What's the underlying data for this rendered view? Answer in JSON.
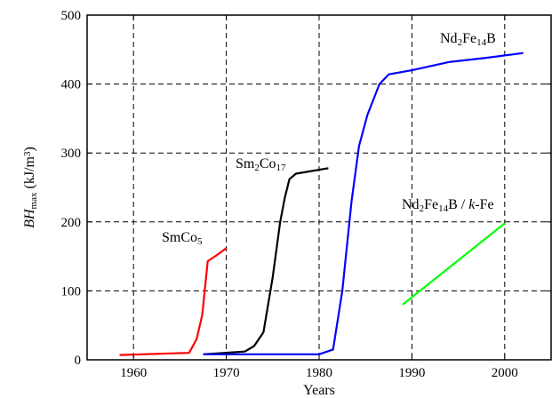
{
  "chart_data": {
    "type": "line",
    "title": "",
    "xlabel": "Years",
    "ylabel": {
      "base": "BH",
      "sub": "max",
      "unit": " (kJ/m",
      "sup": "3",
      "close": ")"
    },
    "xlim": [
      1955,
      2005
    ],
    "ylim": [
      0,
      500
    ],
    "x_ticks": [
      1960,
      1970,
      1980,
      1990,
      2000
    ],
    "y_ticks": [
      0,
      100,
      200,
      300,
      400,
      500
    ],
    "x_tick_labels": [
      "1960",
      "1970",
      "1980",
      "1990",
      "2000"
    ],
    "y_tick_labels": [
      "0",
      "100",
      "200",
      "300",
      "400",
      "500"
    ],
    "grid": true,
    "grid_style": "dashed",
    "series": [
      {
        "id": "smco5",
        "label_parts": [
          {
            "t": "SmCo"
          },
          {
            "t": "5",
            "sub": true
          }
        ],
        "color": "#ff0000",
        "points": [
          [
            1958.5,
            7
          ],
          [
            1966,
            10
          ],
          [
            1966.8,
            30
          ],
          [
            1967.4,
            65
          ],
          [
            1968,
            143
          ],
          [
            1969,
            152
          ],
          [
            1970,
            162
          ]
        ]
      },
      {
        "id": "sm2co17",
        "label_parts": [
          {
            "t": "Sm"
          },
          {
            "t": "2",
            "sub": true
          },
          {
            "t": "Co"
          },
          {
            "t": "17",
            "sub": true
          }
        ],
        "color": "#000000",
        "points": [
          [
            1967.5,
            8
          ],
          [
            1972,
            12
          ],
          [
            1973,
            20
          ],
          [
            1974,
            40
          ],
          [
            1975,
            120
          ],
          [
            1975.8,
            200
          ],
          [
            1976.3,
            235
          ],
          [
            1976.8,
            262
          ],
          [
            1977.5,
            270
          ],
          [
            1981,
            278
          ]
        ]
      },
      {
        "id": "nd2fe14b",
        "label_parts": [
          {
            "t": "Nd"
          },
          {
            "t": "2",
            "sub": true
          },
          {
            "t": "Fe"
          },
          {
            "t": "14",
            "sub": true
          },
          {
            "t": "B"
          }
        ],
        "color": "#0000ff",
        "points": [
          [
            1967.5,
            8
          ],
          [
            1980,
            8
          ],
          [
            1981.5,
            15
          ],
          [
            1982.5,
            100
          ],
          [
            1983.5,
            230
          ],
          [
            1984.3,
            310
          ],
          [
            1985.2,
            355
          ],
          [
            1986.5,
            400
          ],
          [
            1987.5,
            414
          ],
          [
            1990,
            420
          ],
          [
            1994,
            432
          ],
          [
            1998,
            438
          ],
          [
            2002,
            445
          ]
        ]
      },
      {
        "id": "nd2fe14b-kfe",
        "label_parts": [
          {
            "t": "Nd"
          },
          {
            "t": "2",
            "sub": true
          },
          {
            "t": "Fe"
          },
          {
            "t": "14",
            "sub": true
          },
          {
            "t": "B / "
          },
          {
            "t": "k",
            "italic": true
          },
          {
            "t": "-Fe"
          }
        ],
        "color": "#00ff00",
        "points": [
          [
            1989,
            80
          ],
          [
            2000,
            198
          ]
        ]
      }
    ]
  }
}
